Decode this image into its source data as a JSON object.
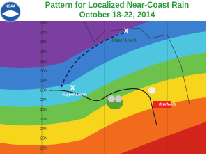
{
  "header": {
    "logo": "NOAA",
    "title": "Pattern for Localized Near-Coast Rain",
    "subtitle": "October 18-22, 2014"
  },
  "map": {
    "latitude_labels": [
      "35N",
      "34N",
      "33N",
      "32N",
      "31N",
      "30N",
      "29N",
      "28N",
      "27N",
      "26N",
      "25N",
      "24N",
      "23N",
      "22N"
    ],
    "markers": [
      "X",
      "X"
    ],
    "annotations": [
      "(Upper Level)",
      "(Upper Level)",
      "(Surface)"
    ]
  }
}
